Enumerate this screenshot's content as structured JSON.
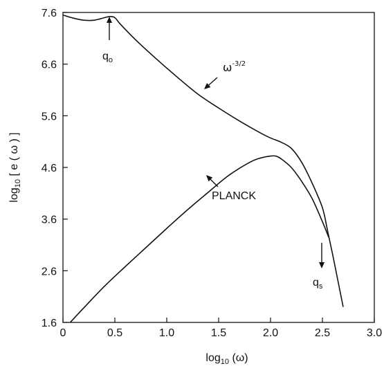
{
  "chart_data": {
    "type": "line",
    "title": "",
    "xlabel": "log 10 (ω)",
    "ylabel": "log 10 [ e ( ω ) ]",
    "xlabel_parts": {
      "pre": "log",
      "sub": "10",
      "post": " (ω)"
    },
    "ylabel_parts": {
      "pre": "log",
      "sub": "10",
      "post": " [ e ( ω ) ]"
    },
    "xlim": [
      0,
      3.0
    ],
    "ylim": [
      1.6,
      7.6
    ],
    "x_ticks": [
      0,
      0.5,
      1.0,
      1.5,
      2.0,
      2.5,
      3.0
    ],
    "x_tick_labels": [
      "0",
      "0.5",
      "1.0",
      "1.5",
      "2.0",
      "2.5",
      "3.0"
    ],
    "y_ticks": [
      1.6,
      2.6,
      3.6,
      4.6,
      5.6,
      6.6,
      7.6
    ],
    "y_tick_labels": [
      "1.6",
      "2.6",
      "3.6",
      "4.6",
      "5.6",
      "6.6",
      "7.6"
    ],
    "grid": false,
    "series": [
      {
        "x": [
          0.0,
          0.1,
          0.2,
          0.3,
          0.4,
          0.45,
          0.5,
          0.55,
          0.7,
          0.9,
          1.1,
          1.3,
          1.5,
          1.7,
          1.9,
          2.0,
          2.1,
          2.2,
          2.3,
          2.4,
          2.5,
          2.55,
          2.6,
          2.65,
          2.7
        ],
        "y": [
          7.55,
          7.49,
          7.45,
          7.45,
          7.5,
          7.52,
          7.5,
          7.38,
          7.07,
          6.7,
          6.35,
          6.02,
          5.75,
          5.5,
          5.27,
          5.17,
          5.09,
          4.97,
          4.7,
          4.3,
          3.82,
          3.37,
          2.9,
          2.4,
          1.9
        ]
      },
      {
        "x": [
          0.07,
          0.2,
          0.4,
          0.6,
          0.8,
          1.0,
          1.2,
          1.4,
          1.6,
          1.8,
          1.9,
          2.0,
          2.05,
          2.1,
          2.2,
          2.3,
          2.4,
          2.5,
          2.56
        ],
        "y": [
          1.6,
          1.88,
          2.3,
          2.68,
          3.05,
          3.42,
          3.78,
          4.12,
          4.45,
          4.7,
          4.78,
          4.82,
          4.82,
          4.77,
          4.6,
          4.33,
          4.0,
          3.55,
          3.25
        ]
      }
    ],
    "annotations": [
      {
        "id": "q0",
        "base": "q",
        "sub": "o",
        "x": 0.45,
        "y": 7.0
      },
      {
        "id": "omega",
        "base": "ω",
        "sup": "-3/2",
        "x": 1.6,
        "y": 6.35
      },
      {
        "id": "planck",
        "text": "PLANCK",
        "x": 1.62,
        "y": 4.05
      },
      {
        "id": "qs",
        "base": "q",
        "sub": "s",
        "x": 2.47,
        "y": 2.55
      }
    ]
  }
}
